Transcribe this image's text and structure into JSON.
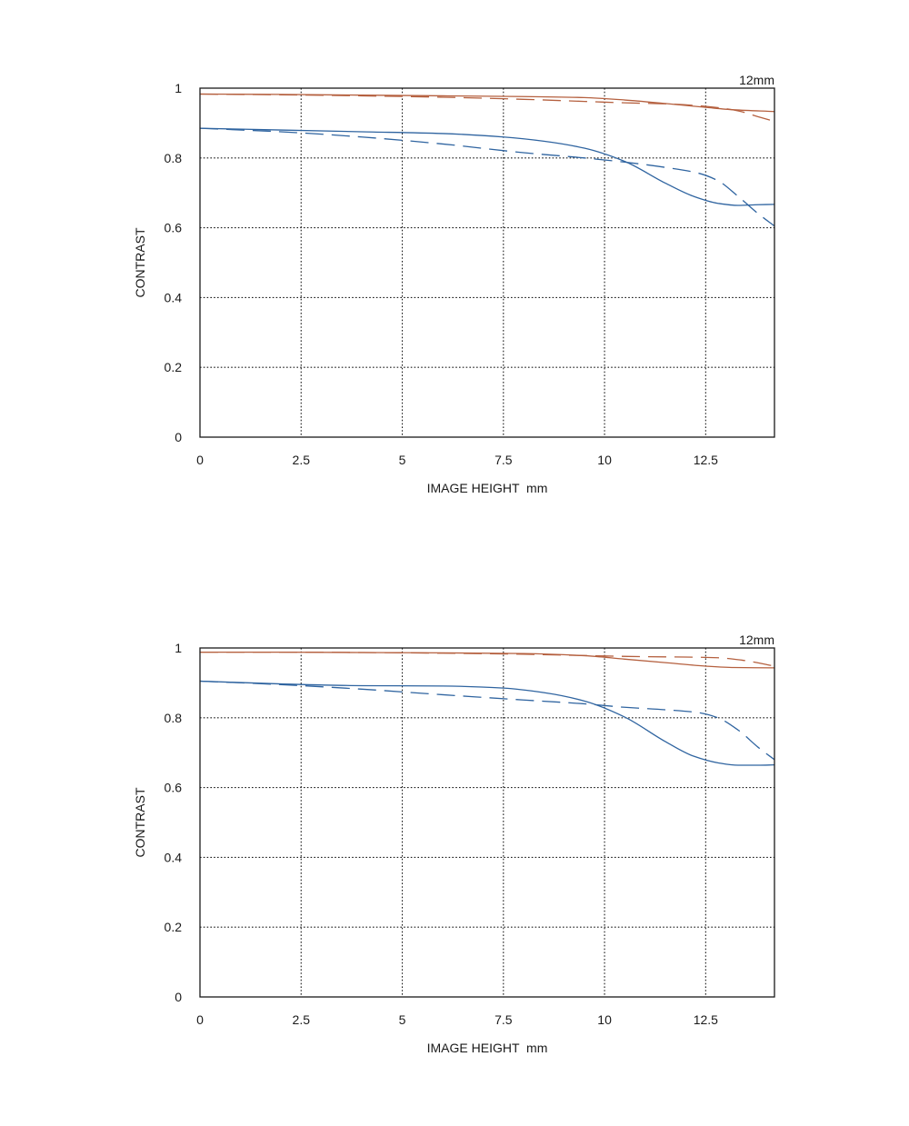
{
  "colors": {
    "sagittal_mtf": "#b5603f",
    "tangential_mtf": "#2f64a0",
    "frame": "#1a1a1a",
    "grid": "#1a1a1a"
  },
  "chart_data": [
    {
      "type": "line",
      "title": "",
      "corner_label": "12mm",
      "xlabel": "IMAGE HEIGHT  mm",
      "ylabel": "CONTRAST",
      "xlim": [
        0,
        14.2
      ],
      "ylim": [
        0,
        1
      ],
      "x_ticks": [
        0,
        2.5,
        5,
        7.5,
        10,
        12.5
      ],
      "x_tick_labels": [
        "0",
        "2.5",
        "5",
        "7.5",
        "10",
        "12.5"
      ],
      "y_ticks": [
        0,
        0.2,
        0.4,
        0.6,
        0.8,
        1
      ],
      "y_tick_labels": [
        "0",
        "0.2",
        "0.4",
        "0.6",
        "0.8",
        "1"
      ],
      "grid": true,
      "series": [
        {
          "color": "#b5603f",
          "dash": "solid",
          "x": [
            0,
            2,
            4,
            6,
            8,
            9.5,
            10.5,
            11.5,
            12.5,
            13.2,
            14.2
          ],
          "y": [
            0.983,
            0.982,
            0.98,
            0.978,
            0.976,
            0.973,
            0.966,
            0.956,
            0.945,
            0.938,
            0.933
          ]
        },
        {
          "color": "#b5603f",
          "dash": "dashed",
          "x": [
            0,
            2,
            4,
            6,
            8,
            9.5,
            10.5,
            11.5,
            12.5,
            13.3,
            13.8,
            14.2
          ],
          "y": [
            0.983,
            0.981,
            0.978,
            0.974,
            0.968,
            0.962,
            0.958,
            0.955,
            0.948,
            0.935,
            0.918,
            0.905
          ]
        },
        {
          "color": "#2f64a0",
          "dash": "solid",
          "x": [
            0,
            2,
            4,
            6,
            7.5,
            8.5,
            9.5,
            10.5,
            11.5,
            12.2,
            12.8,
            13.3,
            13.8,
            14.2
          ],
          "y": [
            0.885,
            0.88,
            0.875,
            0.87,
            0.86,
            0.848,
            0.828,
            0.79,
            0.728,
            0.69,
            0.67,
            0.664,
            0.666,
            0.667
          ]
        },
        {
          "color": "#2f64a0",
          "dash": "dashed",
          "x": [
            0,
            2,
            4,
            6,
            8,
            9.5,
            10.5,
            11.5,
            12.3,
            12.8,
            13.3,
            13.8,
            14.2
          ],
          "y": [
            0.885,
            0.875,
            0.86,
            0.84,
            0.815,
            0.8,
            0.788,
            0.773,
            0.757,
            0.735,
            0.69,
            0.64,
            0.605
          ]
        }
      ]
    },
    {
      "type": "line",
      "title": "",
      "corner_label": "12mm",
      "xlabel": "IMAGE HEIGHT  mm",
      "ylabel": "CONTRAST",
      "xlim": [
        0,
        14.2
      ],
      "ylim": [
        0,
        1
      ],
      "x_ticks": [
        0,
        2.5,
        5,
        7.5,
        10,
        12.5
      ],
      "x_tick_labels": [
        "0",
        "2.5",
        "5",
        "7.5",
        "10",
        "12.5"
      ],
      "y_ticks": [
        0,
        0.2,
        0.4,
        0.6,
        0.8,
        1
      ],
      "y_tick_labels": [
        "0",
        "0.2",
        "0.4",
        "0.6",
        "0.8",
        "1"
      ],
      "grid": true,
      "series": [
        {
          "color": "#b5603f",
          "dash": "solid",
          "x": [
            0,
            2,
            4,
            6,
            8,
            9.5,
            10.5,
            11.5,
            12.5,
            13.2,
            14.2
          ],
          "y": [
            0.988,
            0.988,
            0.987,
            0.986,
            0.984,
            0.978,
            0.968,
            0.958,
            0.948,
            0.944,
            0.943
          ]
        },
        {
          "color": "#b5603f",
          "dash": "dashed",
          "x": [
            0,
            2,
            4,
            6,
            8,
            10,
            11,
            12,
            12.8,
            13.4,
            14.2
          ],
          "y": [
            0.988,
            0.988,
            0.987,
            0.985,
            0.982,
            0.977,
            0.975,
            0.974,
            0.972,
            0.965,
            0.948
          ]
        },
        {
          "color": "#2f64a0",
          "dash": "solid",
          "x": [
            0,
            2,
            4,
            6,
            7.5,
            8.5,
            9.5,
            10.5,
            11.5,
            12.2,
            12.8,
            13.3,
            13.8,
            14.2
          ],
          "y": [
            0.905,
            0.897,
            0.892,
            0.891,
            0.885,
            0.872,
            0.848,
            0.802,
            0.732,
            0.69,
            0.671,
            0.664,
            0.664,
            0.665
          ]
        },
        {
          "color": "#2f64a0",
          "dash": "dashed",
          "x": [
            0,
            2,
            4,
            6,
            8,
            9.5,
            10.5,
            11.5,
            12.3,
            12.8,
            13.3,
            13.8,
            14.2
          ],
          "y": [
            0.905,
            0.895,
            0.882,
            0.866,
            0.851,
            0.84,
            0.83,
            0.823,
            0.815,
            0.8,
            0.765,
            0.715,
            0.68
          ]
        }
      ]
    }
  ]
}
